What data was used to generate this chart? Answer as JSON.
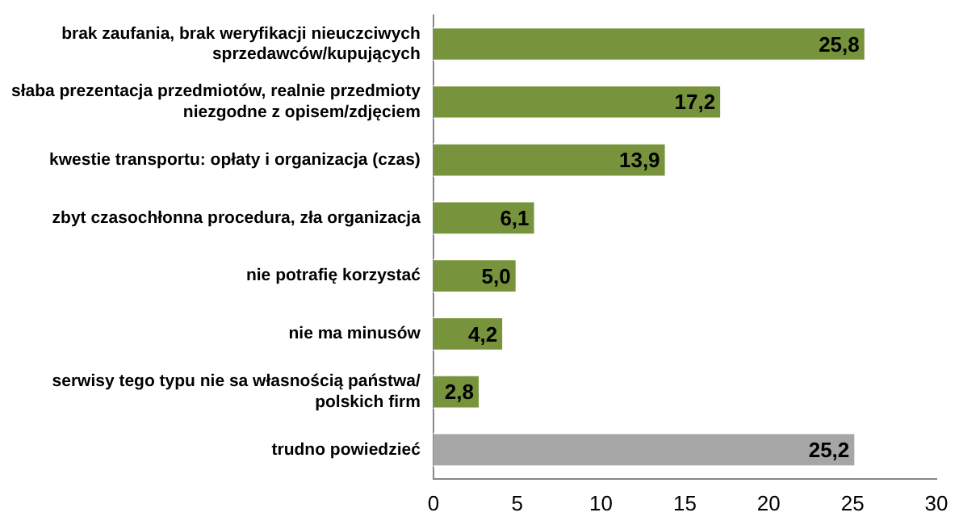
{
  "chart_data": {
    "type": "bar",
    "orientation": "horizontal",
    "categories": [
      "brak zaufania, brak weryfikacji nieuczciwych sprzedawców/kupujących",
      "słaba prezentacja przedmiotów, realnie przedmioty niezgodne z opisem/zdjęciem",
      "kwestie transportu: opłaty i organizacja (czas)",
      "zbyt czasochłonna procedura, zła organizacja",
      "nie potrafię korzystać",
      "nie ma minusów",
      "serwisy tego typu nie sa własnością państwa/ polskich firm",
      "trudno powiedzieć"
    ],
    "values": [
      25.8,
      17.2,
      13.9,
      6.1,
      5.0,
      4.2,
      2.8,
      25.2
    ],
    "colors": [
      "#77933c",
      "#77933c",
      "#77933c",
      "#77933c",
      "#77933c",
      "#77933c",
      "#77933c",
      "#a6a6a6"
    ],
    "value_labels": [
      "25,8",
      "17,2",
      "13,9",
      "6,1",
      "5,0",
      "4,2",
      "2,8",
      "25,2"
    ],
    "xlim": [
      0,
      30
    ],
    "xticks": [
      0,
      5,
      10,
      15,
      20,
      25,
      30
    ],
    "grid": false,
    "legend": false
  }
}
